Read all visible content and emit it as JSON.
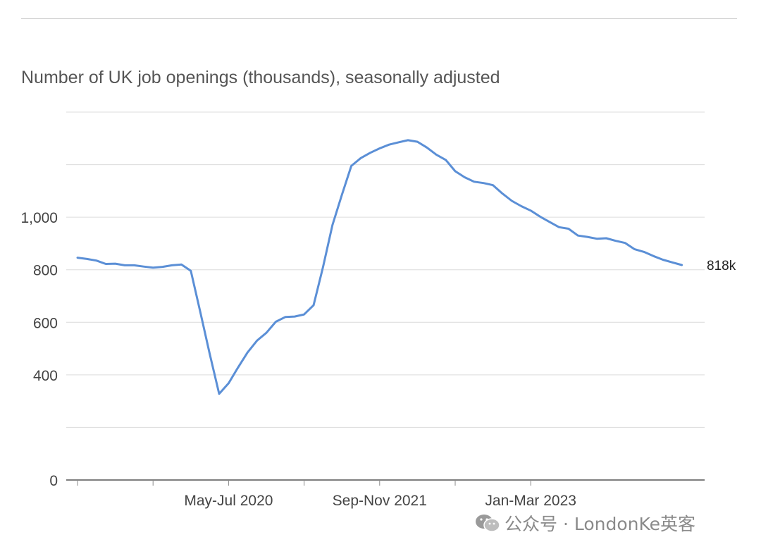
{
  "title": "Number of UK job openings (thousands), seasonally adjusted",
  "watermark": {
    "text": "公众号 · LondonKe英客",
    "icon": "wechat-icon"
  },
  "colors": {
    "line": "#5b8fd6",
    "grid": "#dcdcdc",
    "axis": "#555555",
    "text": "#444444"
  },
  "chart_data": {
    "type": "line",
    "title": "Number of UK job openings (thousands), seasonally adjusted",
    "xlabel": "",
    "ylabel": "",
    "ylim": [
      0,
      1400
    ],
    "yticks": [
      {
        "value": 0,
        "label": "0"
      },
      {
        "value": 200,
        "label": ""
      },
      {
        "value": 400,
        "label": "400"
      },
      {
        "value": 600,
        "label": "600"
      },
      {
        "value": 800,
        "label": "800"
      },
      {
        "value": 1000,
        "label": "1,000"
      },
      {
        "value": 1200,
        "label": ""
      },
      {
        "value": 1400,
        "label": ""
      }
    ],
    "xlim": [
      0,
      51
    ],
    "xticks_minor": [
      0,
      8,
      16,
      24,
      32,
      40,
      48
    ],
    "xtick_labels": [
      {
        "index": 16,
        "label": "May-Jul 2020"
      },
      {
        "index": 32,
        "label": "Sep-Nov 2021"
      },
      {
        "index": 48,
        "label": "Jan-Mar 2023"
      }
    ],
    "end_label": "818k",
    "grid": true,
    "series": [
      {
        "values": [
          846,
          841,
          835,
          822,
          823,
          817,
          817,
          812,
          808,
          811,
          817,
          820,
          796,
          640,
          480,
          328,
          368,
          428,
          485,
          530,
          560,
          602,
          620,
          622,
          630,
          665,
          810,
          970,
          1085,
          1195,
          1225,
          1245,
          1262,
          1276,
          1285,
          1293,
          1287,
          1265,
          1238,
          1218,
          1175,
          1152,
          1135,
          1130,
          1122,
          1090,
          1062,
          1042,
          1025,
          1002,
          982,
          962,
          956,
          930,
          925,
          918,
          920,
          910,
          902,
          878,
          868,
          852,
          838,
          828,
          818
        ]
      }
    ]
  }
}
